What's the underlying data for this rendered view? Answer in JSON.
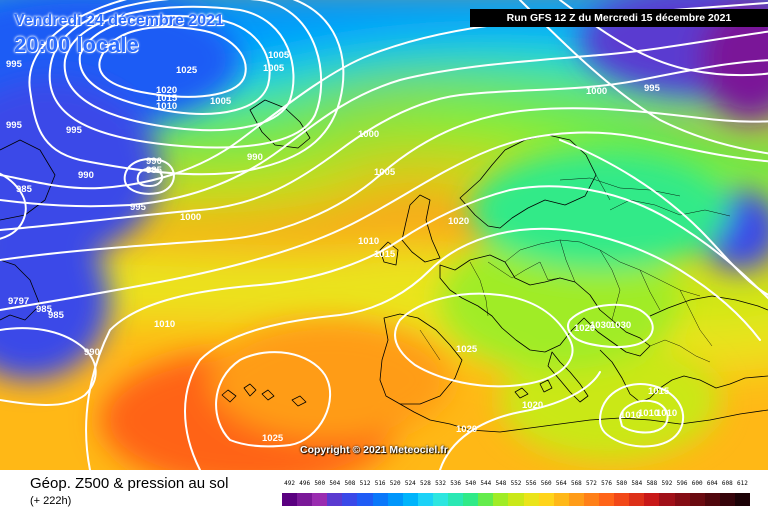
{
  "header": {
    "valid_date": "Vendredi 24 décembre 2021",
    "local_time": "20:00 locale",
    "run_info": "Run GFS 12 Z du Mercredi 15 décembre 2021"
  },
  "footer": {
    "product_title": "Géop. Z500 & pression au sol",
    "lead_time": "(+ 222h)",
    "copyright": "Copyright © 2021 Meteociel.fr"
  },
  "legend": {
    "levels": [
      492,
      496,
      500,
      504,
      508,
      512,
      516,
      520,
      524,
      528,
      532,
      536,
      540,
      544,
      548,
      552,
      556,
      560,
      564,
      568,
      572,
      576,
      580,
      584,
      588,
      592,
      596,
      600,
      604,
      608,
      612
    ],
    "colors": [
      "#5a0080",
      "#7a1898",
      "#9a2cb0",
      "#5a3ad0",
      "#3a48e8",
      "#1f5cf5",
      "#0a78fa",
      "#0096fb",
      "#00b4fb",
      "#1cd2f7",
      "#2ee6e0",
      "#2ae8b4",
      "#30ea88",
      "#64ec4c",
      "#a0ec26",
      "#cae818",
      "#eae41a",
      "#ffd41a",
      "#ffb818",
      "#ff9c18",
      "#ff8018",
      "#ff6418",
      "#f24818",
      "#dd3018",
      "#c81818",
      "#a01018",
      "#840c14",
      "#6a0a10",
      "#50060c",
      "#36040a",
      "#1c0206"
    ]
  },
  "isobars": [
    {
      "label": "1025",
      "pressure": 1025
    },
    {
      "label": "1020",
      "pressure": 1020
    },
    {
      "label": "1015",
      "pressure": 1015
    },
    {
      "label": "1010",
      "pressure": 1010
    },
    {
      "label": "1005",
      "pressure": 1005
    },
    {
      "label": "1000",
      "pressure": 1000
    },
    {
      "label": "995",
      "pressure": 995
    },
    {
      "label": "990",
      "pressure": 990
    },
    {
      "label": "985",
      "pressure": 985
    }
  ],
  "isobar_labels": [
    {
      "text": "995"
    },
    {
      "text": "1005"
    },
    {
      "text": "1025"
    },
    {
      "text": "1005"
    },
    {
      "text": "1020"
    },
    {
      "text": "1015"
    },
    {
      "text": "1010"
    },
    {
      "text": "1005"
    },
    {
      "text": "995"
    },
    {
      "text": "995"
    },
    {
      "text": "990"
    },
    {
      "text": "990"
    },
    {
      "text": "985"
    },
    {
      "text": "985"
    },
    {
      "text": "990"
    },
    {
      "text": "995"
    },
    {
      "text": "1000"
    },
    {
      "text": "1000"
    },
    {
      "text": "1005"
    },
    {
      "text": "1000"
    },
    {
      "text": "995"
    },
    {
      "text": "1020"
    },
    {
      "text": "1010"
    },
    {
      "text": "1015"
    },
    {
      "text": "1010"
    },
    {
      "text": "990"
    },
    {
      "text": "9797"
    },
    {
      "text": "985"
    },
    {
      "text": "985"
    },
    {
      "text": "1025"
    },
    {
      "text": "1025"
    },
    {
      "text": "1030"
    },
    {
      "text": "1030"
    },
    {
      "text": "1020"
    },
    {
      "text": "1020"
    },
    {
      "text": "1020"
    },
    {
      "text": "1015"
    },
    {
      "text": "1010"
    },
    {
      "text": "1010"
    },
    {
      "text": "1010"
    }
  ]
}
